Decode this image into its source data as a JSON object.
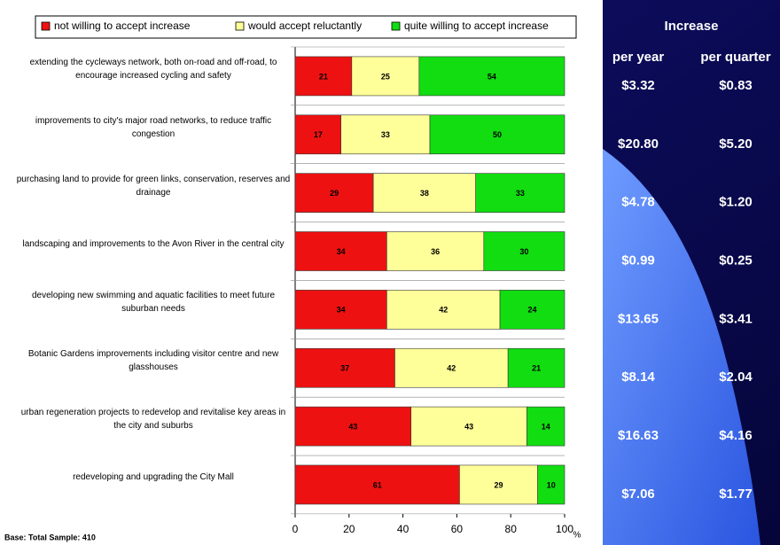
{
  "chart_data": {
    "type": "bar",
    "orientation": "horizontal",
    "stacked": true,
    "categories": [
      "extending the cycleways network, both on-road and off-road, to encourage increased cycling and safety",
      "improvements to city's major road networks, to reduce traffic congestion",
      "purchasing land to provide for green links, conservation, reserves and drainage",
      "landscaping and improvements to the Avon River in the central city",
      "developing new swimming and aquatic facilities to meet future suburban needs",
      "Botanic Gardens improvements including visitor centre and new glasshouses",
      "urban regeneration projects to redevelop and revitalise key areas in the city and suburbs",
      "redeveloping and upgrading the City Mall"
    ],
    "series": [
      {
        "name": "not willing to accept increase",
        "color": "#ee1111",
        "values": [
          21,
          17,
          29,
          34,
          34,
          37,
          43,
          61
        ]
      },
      {
        "name": "would accept reluctantly",
        "color": "#ffff99",
        "values": [
          25,
          33,
          38,
          36,
          42,
          42,
          43,
          29
        ]
      },
      {
        "name": "quite willing to accept increase",
        "color": "#11dd11",
        "values": [
          54,
          50,
          33,
          30,
          24,
          21,
          14,
          10
        ]
      }
    ],
    "xlim": [
      0,
      100
    ],
    "xticks": [
      0,
      20,
      40,
      60,
      80,
      100
    ],
    "xlabel": "%",
    "legend": "top",
    "footnote": "Base: Total Sample: 410"
  },
  "table": {
    "title": "Increase",
    "columns": [
      "per year",
      "per quarter"
    ],
    "rows": [
      [
        "$3.32",
        "$0.83"
      ],
      [
        "$20.80",
        "$5.20"
      ],
      [
        "$4.78",
        "$1.20"
      ],
      [
        "$0.99",
        "$0.25"
      ],
      [
        "$13.65",
        "$3.41"
      ],
      [
        "$8.14",
        "$2.04"
      ],
      [
        "$16.63",
        "$4.16"
      ],
      [
        "$7.06",
        "$1.77"
      ]
    ]
  }
}
